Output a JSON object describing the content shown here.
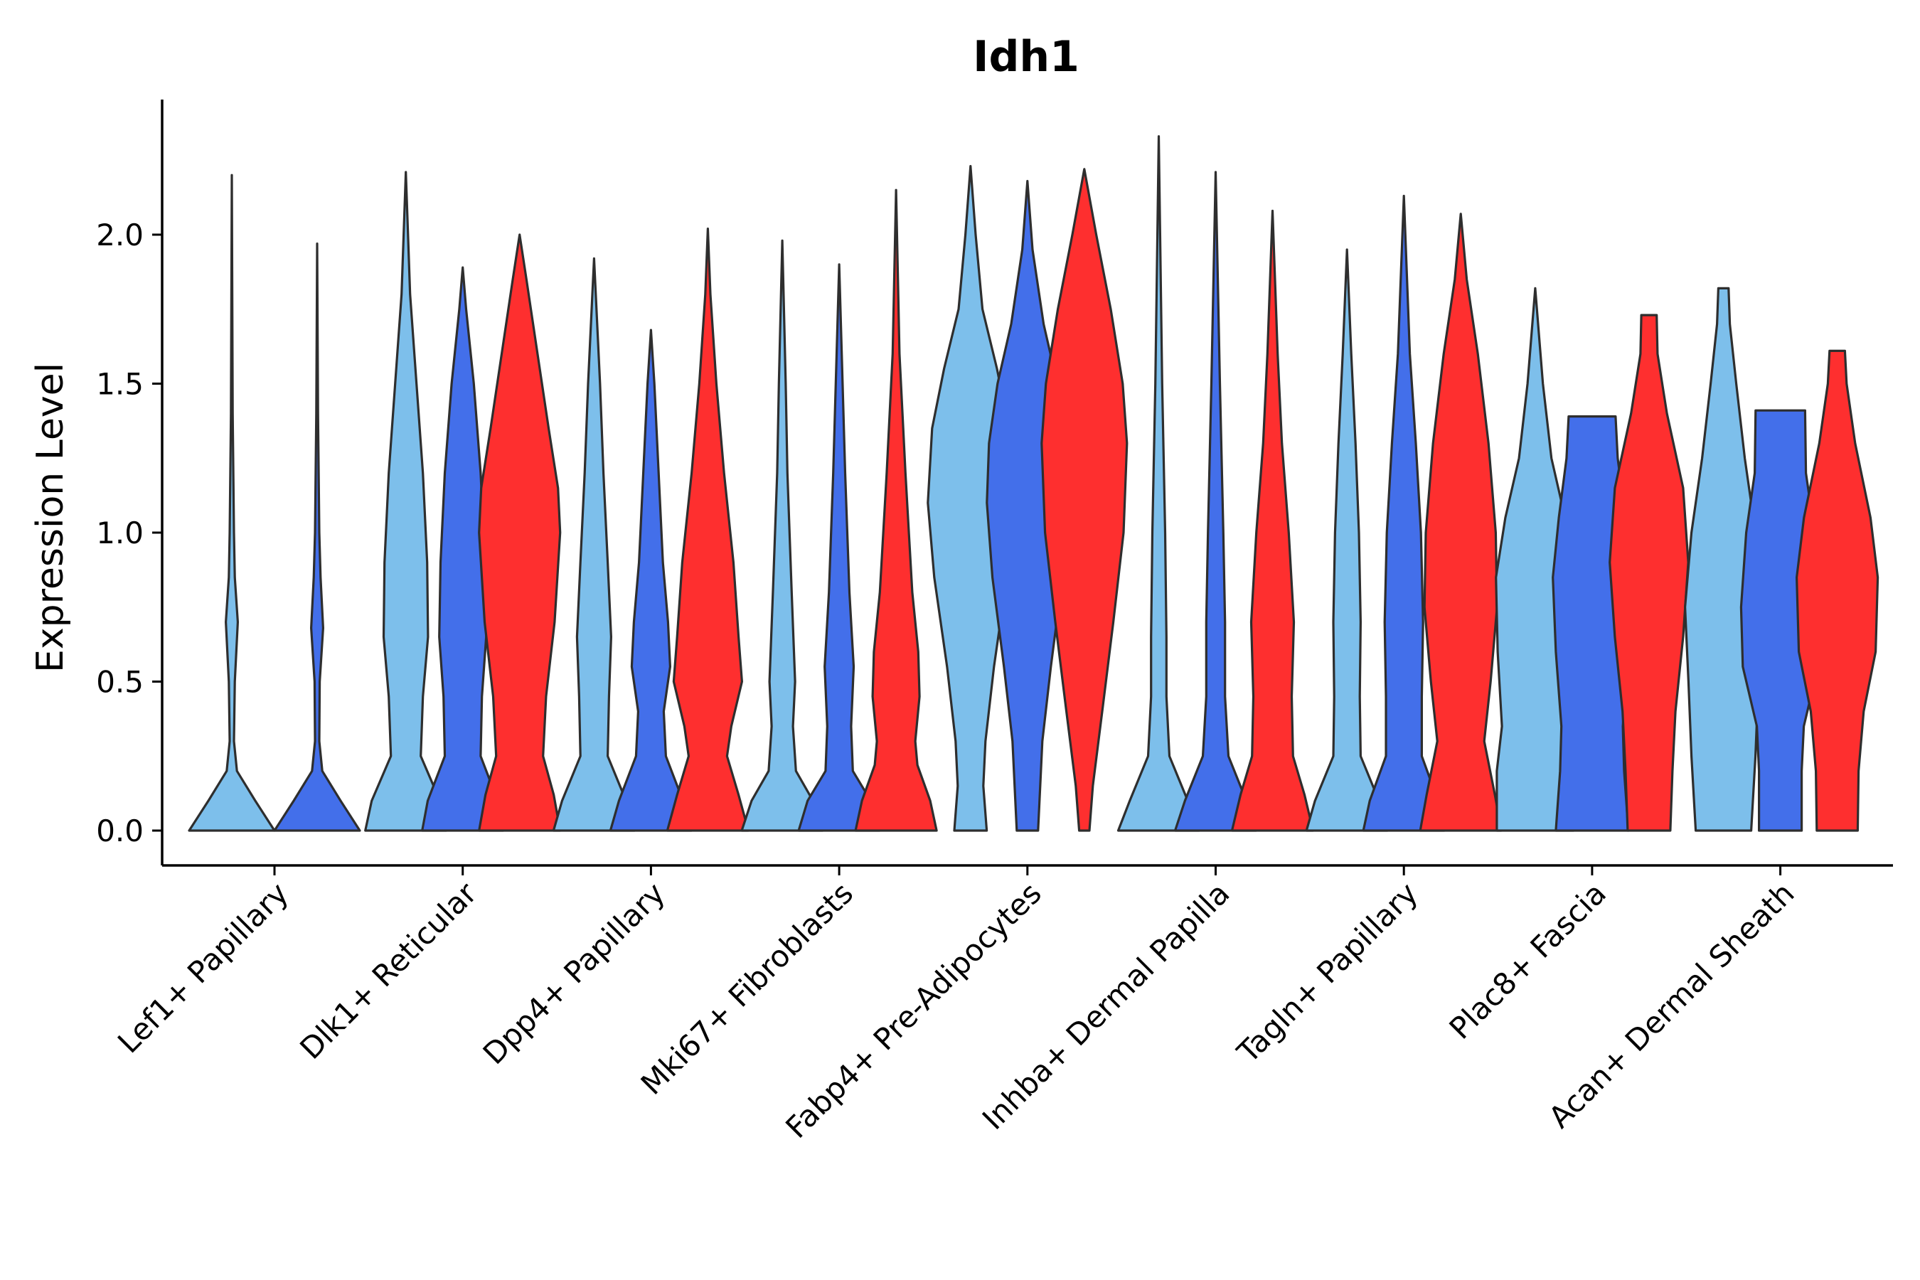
{
  "chart_data": {
    "type": "violin",
    "title": "Idh1",
    "xlabel": "",
    "ylabel": "Expression Level",
    "ylim": [
      -0.12,
      2.45
    ],
    "yticks": [
      "0.0",
      "0.5",
      "1.0",
      "1.5",
      "2.0"
    ],
    "ytick_values": [
      0,
      0.5,
      1.0,
      1.5,
      2.0
    ],
    "categories": [
      "Lef1+ Papillary",
      "Dlk1+ Reticular",
      "Dpp4+ Papillary",
      "Mki67+ Fibroblasts",
      "Fabp4+ Pre-Adipocytes",
      "Inhba+ Dermal Papilla",
      "Tagln+ Papillary",
      "Plac8+ Fascia",
      "Acan+ Dermal Sheath"
    ],
    "series_colors": [
      "#7dbfeb",
      "#436fea",
      "#fe2f2f"
    ],
    "violins": [
      {
        "category": 0,
        "series": 0,
        "max": 2.2,
        "density": [
          [
            0,
            1.0
          ],
          [
            0.1,
            0.55
          ],
          [
            0.2,
            0.12
          ],
          [
            0.3,
            0.05
          ],
          [
            0.5,
            0.07
          ],
          [
            0.7,
            0.14
          ],
          [
            0.85,
            0.07
          ],
          [
            1.0,
            0.05
          ],
          [
            1.4,
            0.02
          ],
          [
            2.2,
            0
          ]
        ]
      },
      {
        "category": 0,
        "series": 1,
        "max": 1.97,
        "density": [
          [
            0,
            1.0
          ],
          [
            0.1,
            0.55
          ],
          [
            0.2,
            0.12
          ],
          [
            0.3,
            0.05
          ],
          [
            0.5,
            0.06
          ],
          [
            0.68,
            0.14
          ],
          [
            0.85,
            0.08
          ],
          [
            1.0,
            0.05
          ],
          [
            1.4,
            0.02
          ],
          [
            1.97,
            0
          ]
        ]
      },
      {
        "category": 1,
        "series": 0,
        "max": 2.21,
        "density": [
          [
            0,
            0.95
          ],
          [
            0.1,
            0.8
          ],
          [
            0.25,
            0.35
          ],
          [
            0.45,
            0.4
          ],
          [
            0.65,
            0.52
          ],
          [
            0.9,
            0.5
          ],
          [
            1.2,
            0.4
          ],
          [
            1.5,
            0.25
          ],
          [
            1.8,
            0.1
          ],
          [
            2.21,
            0
          ]
        ]
      },
      {
        "category": 1,
        "series": 1,
        "max": 1.89,
        "density": [
          [
            0,
            0.95
          ],
          [
            0.1,
            0.82
          ],
          [
            0.25,
            0.42
          ],
          [
            0.45,
            0.45
          ],
          [
            0.65,
            0.55
          ],
          [
            0.9,
            0.52
          ],
          [
            1.2,
            0.42
          ],
          [
            1.5,
            0.26
          ],
          [
            1.75,
            0.08
          ],
          [
            1.89,
            0
          ]
        ]
      },
      {
        "category": 1,
        "series": 2,
        "max": 2.0,
        "density": [
          [
            0,
            0.95
          ],
          [
            0.12,
            0.8
          ],
          [
            0.25,
            0.55
          ],
          [
            0.45,
            0.62
          ],
          [
            0.7,
            0.82
          ],
          [
            1.0,
            0.95
          ],
          [
            1.15,
            0.9
          ],
          [
            1.35,
            0.68
          ],
          [
            1.6,
            0.42
          ],
          [
            1.85,
            0.16
          ],
          [
            2.0,
            0
          ]
        ]
      },
      {
        "category": 2,
        "series": 0,
        "max": 1.92,
        "density": [
          [
            0,
            0.95
          ],
          [
            0.1,
            0.75
          ],
          [
            0.25,
            0.32
          ],
          [
            0.45,
            0.35
          ],
          [
            0.65,
            0.4
          ],
          [
            0.9,
            0.32
          ],
          [
            1.2,
            0.22
          ],
          [
            1.5,
            0.14
          ],
          [
            1.92,
            0
          ]
        ]
      },
      {
        "category": 2,
        "series": 1,
        "max": 1.68,
        "density": [
          [
            0,
            0.95
          ],
          [
            0.1,
            0.75
          ],
          [
            0.25,
            0.35
          ],
          [
            0.4,
            0.3
          ],
          [
            0.55,
            0.45
          ],
          [
            0.7,
            0.4
          ],
          [
            0.9,
            0.28
          ],
          [
            1.2,
            0.18
          ],
          [
            1.5,
            0.08
          ],
          [
            1.68,
            0
          ]
        ]
      },
      {
        "category": 2,
        "series": 2,
        "max": 2.02,
        "density": [
          [
            0,
            0.95
          ],
          [
            0.12,
            0.72
          ],
          [
            0.25,
            0.45
          ],
          [
            0.35,
            0.55
          ],
          [
            0.5,
            0.8
          ],
          [
            0.65,
            0.72
          ],
          [
            0.9,
            0.6
          ],
          [
            1.2,
            0.38
          ],
          [
            1.5,
            0.2
          ],
          [
            1.8,
            0.06
          ],
          [
            2.02,
            0
          ]
        ]
      },
      {
        "category": 3,
        "series": 0,
        "max": 1.98,
        "density": [
          [
            0,
            0.95
          ],
          [
            0.1,
            0.72
          ],
          [
            0.2,
            0.32
          ],
          [
            0.35,
            0.25
          ],
          [
            0.5,
            0.3
          ],
          [
            0.8,
            0.22
          ],
          [
            1.2,
            0.12
          ],
          [
            1.5,
            0.08
          ],
          [
            1.98,
            0
          ]
        ]
      },
      {
        "category": 3,
        "series": 1,
        "max": 1.9,
        "density": [
          [
            0,
            0.95
          ],
          [
            0.1,
            0.74
          ],
          [
            0.2,
            0.32
          ],
          [
            0.35,
            0.28
          ],
          [
            0.55,
            0.34
          ],
          [
            0.8,
            0.24
          ],
          [
            1.2,
            0.14
          ],
          [
            1.5,
            0.08
          ],
          [
            1.9,
            0
          ]
        ]
      },
      {
        "category": 3,
        "series": 2,
        "max": 2.15,
        "density": [
          [
            0,
            0.95
          ],
          [
            0.1,
            0.8
          ],
          [
            0.22,
            0.5
          ],
          [
            0.3,
            0.45
          ],
          [
            0.45,
            0.55
          ],
          [
            0.6,
            0.52
          ],
          [
            0.8,
            0.38
          ],
          [
            1.2,
            0.22
          ],
          [
            1.6,
            0.08
          ],
          [
            2.15,
            0
          ]
        ]
      },
      {
        "category": 4,
        "series": 0,
        "max": 2.23,
        "density": [
          [
            0,
            0.38
          ],
          [
            0.15,
            0.3
          ],
          [
            0.3,
            0.35
          ],
          [
            0.55,
            0.55
          ],
          [
            0.85,
            0.85
          ],
          [
            1.1,
            1.0
          ],
          [
            1.35,
            0.9
          ],
          [
            1.55,
            0.62
          ],
          [
            1.75,
            0.28
          ],
          [
            2.0,
            0.12
          ],
          [
            2.23,
            0
          ]
        ]
      },
      {
        "category": 4,
        "series": 1,
        "max": 2.18,
        "density": [
          [
            0,
            0.25
          ],
          [
            0.15,
            0.3
          ],
          [
            0.3,
            0.35
          ],
          [
            0.55,
            0.55
          ],
          [
            0.85,
            0.82
          ],
          [
            1.1,
            0.95
          ],
          [
            1.3,
            0.9
          ],
          [
            1.5,
            0.7
          ],
          [
            1.7,
            0.38
          ],
          [
            1.95,
            0.12
          ],
          [
            2.18,
            0
          ]
        ]
      },
      {
        "category": 4,
        "series": 2,
        "max": 2.22,
        "density": [
          [
            0,
            0.12
          ],
          [
            0.15,
            0.2
          ],
          [
            0.4,
            0.42
          ],
          [
            0.7,
            0.68
          ],
          [
            1.0,
            0.92
          ],
          [
            1.3,
            1.0
          ],
          [
            1.5,
            0.9
          ],
          [
            1.75,
            0.62
          ],
          [
            2.0,
            0.28
          ],
          [
            2.22,
            0
          ]
        ]
      },
      {
        "category": 5,
        "series": 0,
        "max": 2.33,
        "density": [
          [
            0,
            0.95
          ],
          [
            0.1,
            0.68
          ],
          [
            0.25,
            0.25
          ],
          [
            0.45,
            0.18
          ],
          [
            0.65,
            0.18
          ],
          [
            1.0,
            0.15
          ],
          [
            1.5,
            0.08
          ],
          [
            2.33,
            0
          ]
        ]
      },
      {
        "category": 5,
        "series": 1,
        "max": 2.21,
        "density": [
          [
            0,
            0.95
          ],
          [
            0.1,
            0.72
          ],
          [
            0.25,
            0.3
          ],
          [
            0.45,
            0.22
          ],
          [
            0.7,
            0.22
          ],
          [
            1.0,
            0.18
          ],
          [
            1.5,
            0.1
          ],
          [
            2.21,
            0
          ]
        ]
      },
      {
        "category": 5,
        "series": 2,
        "max": 2.08,
        "density": [
          [
            0,
            0.95
          ],
          [
            0.12,
            0.75
          ],
          [
            0.25,
            0.48
          ],
          [
            0.45,
            0.45
          ],
          [
            0.7,
            0.5
          ],
          [
            1.0,
            0.38
          ],
          [
            1.3,
            0.22
          ],
          [
            1.6,
            0.12
          ],
          [
            2.08,
            0
          ]
        ]
      },
      {
        "category": 6,
        "series": 0,
        "max": 1.95,
        "density": [
          [
            0,
            0.95
          ],
          [
            0.1,
            0.75
          ],
          [
            0.25,
            0.32
          ],
          [
            0.45,
            0.3
          ],
          [
            0.7,
            0.32
          ],
          [
            1.0,
            0.28
          ],
          [
            1.3,
            0.2
          ],
          [
            1.6,
            0.1
          ],
          [
            1.95,
            0
          ]
        ]
      },
      {
        "category": 6,
        "series": 1,
        "max": 2.13,
        "density": [
          [
            0,
            0.95
          ],
          [
            0.1,
            0.8
          ],
          [
            0.25,
            0.42
          ],
          [
            0.45,
            0.42
          ],
          [
            0.7,
            0.45
          ],
          [
            1.0,
            0.4
          ],
          [
            1.3,
            0.28
          ],
          [
            1.6,
            0.14
          ],
          [
            2.13,
            0
          ]
        ]
      },
      {
        "category": 6,
        "series": 2,
        "max": 2.07,
        "density": [
          [
            0,
            0.95
          ],
          [
            0.12,
            0.8
          ],
          [
            0.3,
            0.55
          ],
          [
            0.5,
            0.7
          ],
          [
            0.75,
            0.85
          ],
          [
            1.0,
            0.82
          ],
          [
            1.3,
            0.65
          ],
          [
            1.6,
            0.4
          ],
          [
            1.85,
            0.14
          ],
          [
            2.07,
            0
          ]
        ]
      },
      {
        "category": 7,
        "series": 0,
        "max": 1.82,
        "density": [
          [
            0,
            0.9
          ],
          [
            0.2,
            0.9
          ],
          [
            0.35,
            0.78
          ],
          [
            0.6,
            0.88
          ],
          [
            0.85,
            0.92
          ],
          [
            1.05,
            0.7
          ],
          [
            1.25,
            0.38
          ],
          [
            1.5,
            0.18
          ],
          [
            1.82,
            0
          ]
        ]
      },
      {
        "category": 7,
        "series": 1,
        "max": 1.39,
        "density": [
          [
            0,
            0.85
          ],
          [
            0.2,
            0.75
          ],
          [
            0.35,
            0.72
          ],
          [
            0.6,
            0.85
          ],
          [
            0.85,
            0.92
          ],
          [
            1.05,
            0.78
          ],
          [
            1.25,
            0.6
          ],
          [
            1.39,
            0.55
          ]
        ]
      },
      {
        "category": 7,
        "series": 2,
        "max": 1.73,
        "density": [
          [
            0,
            0.5
          ],
          [
            0.2,
            0.55
          ],
          [
            0.4,
            0.62
          ],
          [
            0.65,
            0.8
          ],
          [
            0.9,
            0.92
          ],
          [
            1.15,
            0.8
          ],
          [
            1.4,
            0.42
          ],
          [
            1.6,
            0.2
          ],
          [
            1.73,
            0.18
          ]
        ]
      },
      {
        "category": 8,
        "series": 0,
        "max": 1.82,
        "density": [
          [
            0,
            0.65
          ],
          [
            0.25,
            0.75
          ],
          [
            0.5,
            0.82
          ],
          [
            0.75,
            0.9
          ],
          [
            1.0,
            0.75
          ],
          [
            1.25,
            0.5
          ],
          [
            1.5,
            0.3
          ],
          [
            1.7,
            0.15
          ],
          [
            1.82,
            0.12
          ]
        ]
      },
      {
        "category": 8,
        "series": 1,
        "max": 1.41,
        "density": [
          [
            0,
            0.5
          ],
          [
            0.2,
            0.5
          ],
          [
            0.35,
            0.55
          ],
          [
            0.55,
            0.88
          ],
          [
            0.75,
            0.92
          ],
          [
            1.0,
            0.8
          ],
          [
            1.2,
            0.6
          ],
          [
            1.41,
            0.58
          ]
        ]
      },
      {
        "category": 8,
        "series": 2,
        "max": 1.61,
        "density": [
          [
            0,
            0.48
          ],
          [
            0.2,
            0.5
          ],
          [
            0.4,
            0.62
          ],
          [
            0.6,
            0.9
          ],
          [
            0.85,
            0.95
          ],
          [
            1.05,
            0.78
          ],
          [
            1.3,
            0.42
          ],
          [
            1.5,
            0.22
          ],
          [
            1.61,
            0.18
          ]
        ]
      }
    ]
  }
}
